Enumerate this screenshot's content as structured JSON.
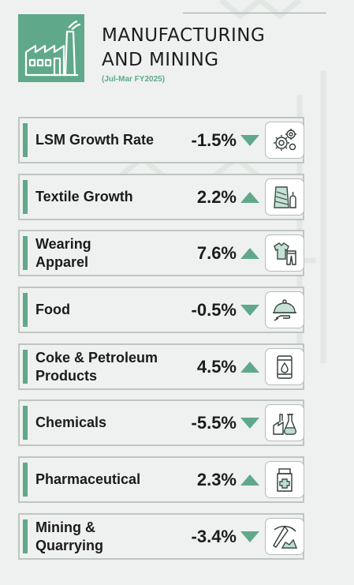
{
  "header": {
    "title_line1": "MANUFACTURING",
    "title_line2": "AND MINING",
    "subtitle": "(Jul-Mar FY2025)"
  },
  "colors": {
    "accent": "#5fa98a",
    "text": "#1b1b1b",
    "border": "#bfc6c2"
  },
  "rows": [
    {
      "label": "LSM Growth Rate",
      "value": "-1.5%",
      "direction": "down",
      "icon": "gears-icon"
    },
    {
      "label": "Textile Growth",
      "value": "2.2%",
      "direction": "up",
      "icon": "yarn-spool-icon"
    },
    {
      "label": "Wearing Apparel",
      "value": "7.6%",
      "direction": "up",
      "icon": "clothing-icon"
    },
    {
      "label": "Food",
      "value": "-0.5%",
      "direction": "down",
      "icon": "food-cloche-icon"
    },
    {
      "label": "Coke & Petroleum Products",
      "value": "4.5%",
      "direction": "up",
      "icon": "oil-barrel-icon"
    },
    {
      "label": "Chemicals",
      "value": "-5.5%",
      "direction": "down",
      "icon": "chemical-plant-icon"
    },
    {
      "label": "Pharmaceutical",
      "value": "2.3%",
      "direction": "up",
      "icon": "medicine-bottle-icon"
    },
    {
      "label": "Mining & Quarrying",
      "value": "-3.4%",
      "direction": "down",
      "icon": "pickaxe-icon"
    }
  ]
}
